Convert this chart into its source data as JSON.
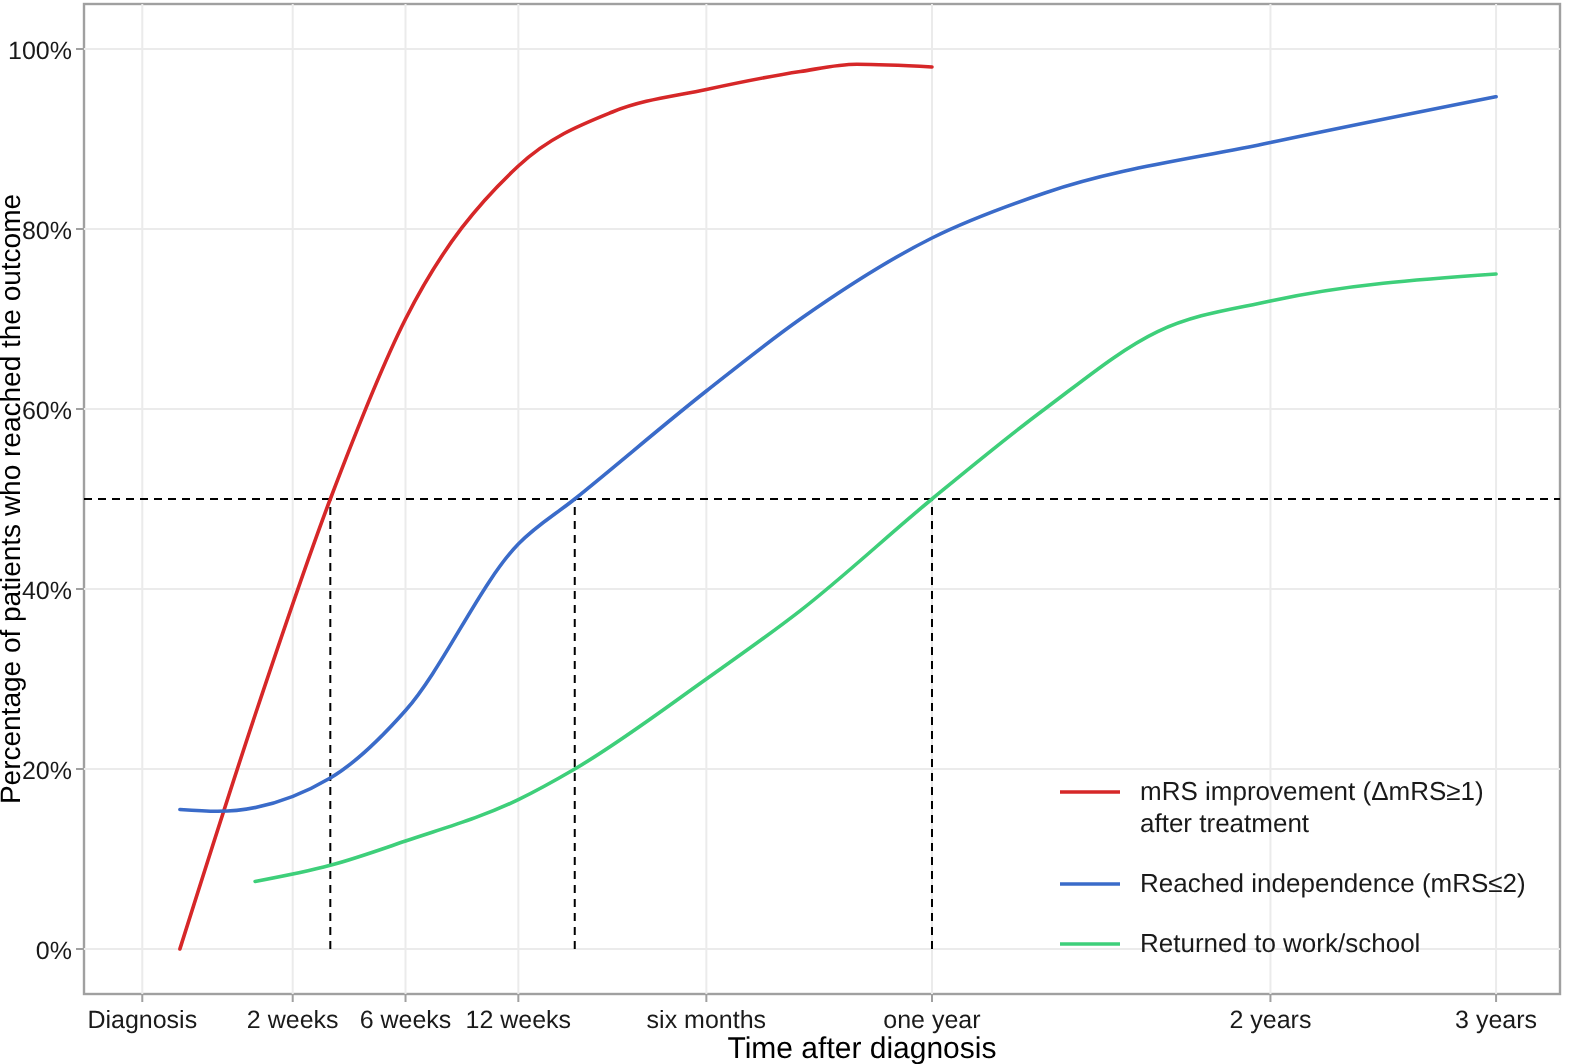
{
  "chart_data": {
    "type": "line",
    "xlabel": "Time after diagnosis",
    "ylabel": "Percentage of patients who reached the outcome",
    "categories": [
      "Diagnosis",
      null,
      null,
      null,
      null,
      null,
      null,
      null,
      "2 weeks",
      null,
      null,
      null,
      null,
      null,
      "6 weeks",
      null,
      null,
      null,
      null,
      null,
      "12 weeks",
      null,
      null,
      null,
      null,
      null,
      null,
      null,
      null,
      null,
      "six months",
      null,
      null,
      null,
      null,
      null,
      null,
      null,
      null,
      null,
      null,
      null,
      "one year",
      null,
      null,
      null,
      null,
      null,
      null,
      null,
      null,
      null,
      null,
      null,
      null,
      null,
      null,
      null,
      null,
      null,
      "2 years",
      null,
      null,
      null,
      null,
      null,
      null,
      null,
      null,
      null,
      null,
      null,
      "3 years"
    ],
    "ylim": [
      -5,
      105
    ],
    "yticks": [
      {
        "value": 0,
        "label": "0%"
      },
      {
        "value": 20,
        "label": "20%"
      },
      {
        "value": 40,
        "label": "40%"
      },
      {
        "value": 60,
        "label": "60%"
      },
      {
        "value": 80,
        "label": "80%"
      },
      {
        "value": 100,
        "label": "100%"
      }
    ],
    "grid": true,
    "legend": "bottom right",
    "line_style": "solid",
    "series": [
      {
        "name": "mRS improvement (ΔmRS≥1) after treatment",
        "color": "#d62728",
        "values": [
          null,
          null,
          0,
          null,
          null,
          null,
          26,
          null,
          null,
          null,
          50,
          null,
          null,
          null,
          70,
          null,
          null,
          null,
          null,
          null,
          87,
          null,
          null,
          null,
          null,
          93,
          null,
          null,
          null,
          null,
          95.5,
          null,
          null,
          null,
          null,
          97.5,
          null,
          null,
          98.3,
          null,
          null,
          null,
          98,
          null,
          null,
          null,
          null,
          null,
          null,
          null,
          null,
          null,
          null,
          null,
          null,
          null,
          null,
          null,
          null,
          null,
          null,
          null,
          null,
          null,
          null,
          null,
          null,
          null,
          null,
          null,
          null,
          null,
          null
        ]
      },
      {
        "name": "Reached independence (mRS≤2)",
        "color": "#3a6bc9",
        "values": [
          null,
          null,
          15.5,
          null,
          15.3,
          null,
          null,
          null,
          null,
          null,
          19,
          null,
          null,
          null,
          26.5,
          null,
          null,
          null,
          null,
          null,
          45,
          null,
          null,
          50,
          null,
          null,
          null,
          null,
          null,
          null,
          62,
          null,
          null,
          null,
          null,
          70,
          null,
          null,
          null,
          null,
          null,
          null,
          79,
          null,
          null,
          null,
          null,
          null,
          84,
          null,
          null,
          null,
          null,
          null,
          null,
          null,
          null,
          null,
          null,
          null,
          89.6,
          null,
          null,
          null,
          null,
          null,
          null,
          null,
          null,
          null,
          null,
          null,
          94.7
        ]
      },
      {
        "name": "Returned to work/school",
        "color": "#3ecf7a",
        "values": [
          null,
          null,
          null,
          null,
          null,
          null,
          7.5,
          null,
          null,
          null,
          9.3,
          null,
          null,
          null,
          12,
          null,
          null,
          null,
          null,
          null,
          16.6,
          null,
          null,
          20,
          null,
          null,
          null,
          null,
          null,
          null,
          30,
          null,
          null,
          null,
          null,
          37.6,
          null,
          null,
          null,
          null,
          null,
          null,
          50,
          null,
          null,
          null,
          null,
          null,
          60,
          null,
          null,
          null,
          null,
          null,
          68.6,
          null,
          null,
          null,
          null,
          null,
          72,
          null,
          null,
          null,
          null,
          null,
          null,
          null,
          null,
          null,
          null,
          null,
          75
        ]
      }
    ],
    "ref_lines": [
      {
        "axis": "y",
        "value": 50,
        "line_style": "dashed"
      }
    ]
  }
}
